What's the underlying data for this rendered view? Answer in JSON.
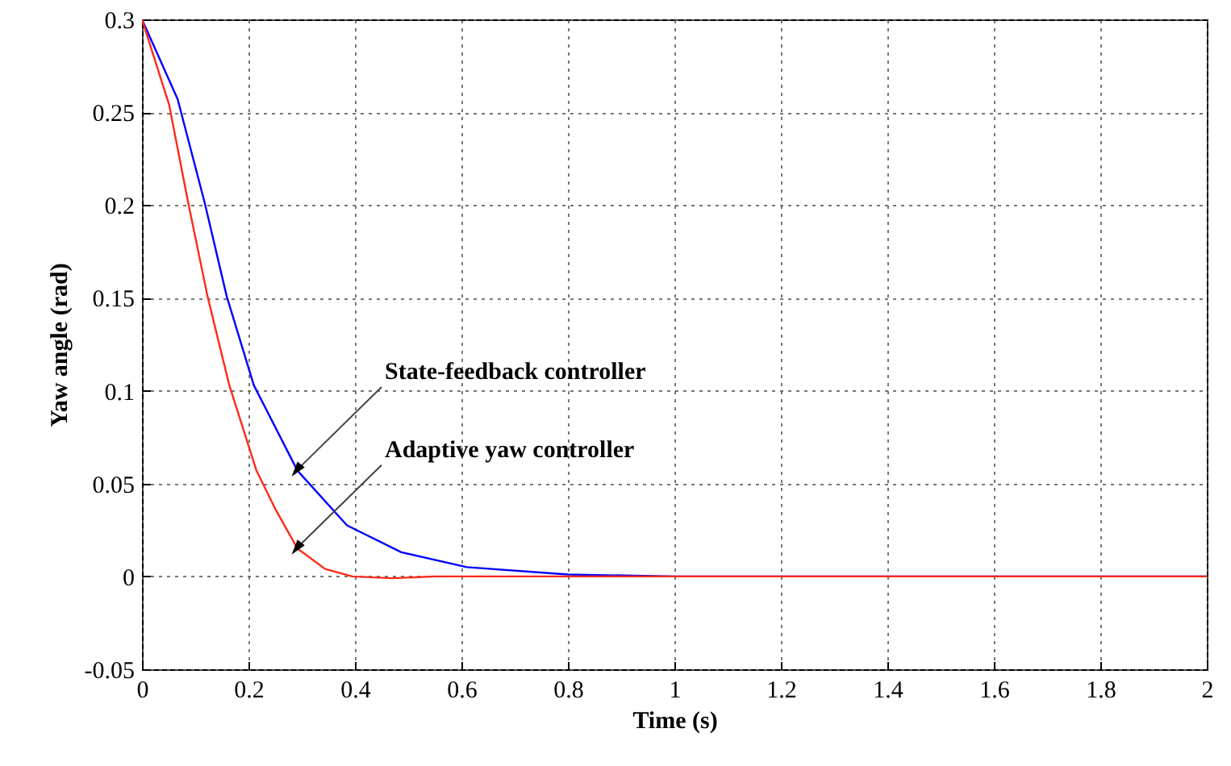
{
  "chart_data": {
    "type": "line",
    "xlabel": "Time (s)",
    "ylabel": "Yaw angle (rad)",
    "xlim": [
      0,
      2
    ],
    "ylim": [
      -0.05,
      0.3
    ],
    "xticks": [
      0,
      0.2,
      0.4,
      0.6,
      0.8,
      1,
      1.2,
      1.4,
      1.6,
      1.8,
      2
    ],
    "yticks": [
      -0.05,
      0,
      0.05,
      0.1,
      0.15,
      0.2,
      0.25,
      0.3
    ],
    "grid": true,
    "line_style": "solid",
    "marker": "none",
    "series": [
      {
        "color": "#0000ff",
        "x": [
          0,
          0.067,
          0.118,
          0.159,
          0.21,
          0.292,
          0.385,
          0.487,
          0.61,
          0.8,
          1,
          2
        ],
        "values": [
          0.3,
          0.257,
          0.201,
          0.151,
          0.103,
          0.057,
          0.0275,
          0.013,
          0.005,
          0.001,
          0,
          0
        ]
      },
      {
        "color": "#ff2a1a",
        "x": [
          0,
          0.051,
          0.087,
          0.123,
          0.164,
          0.215,
          0.251,
          0.292,
          0.344,
          0.395,
          0.47,
          0.55,
          2
        ],
        "values": [
          0.3,
          0.254,
          0.201,
          0.151,
          0.103,
          0.057,
          0.036,
          0.015,
          0.004,
          0,
          -0.001,
          0,
          0
        ]
      }
    ],
    "annotations": [
      {
        "text": "State-feedback controller",
        "x": 0.29,
        "y": 0.057
      },
      {
        "text": "Adaptive yaw controller",
        "x": 0.29,
        "y": 0.015
      }
    ]
  }
}
